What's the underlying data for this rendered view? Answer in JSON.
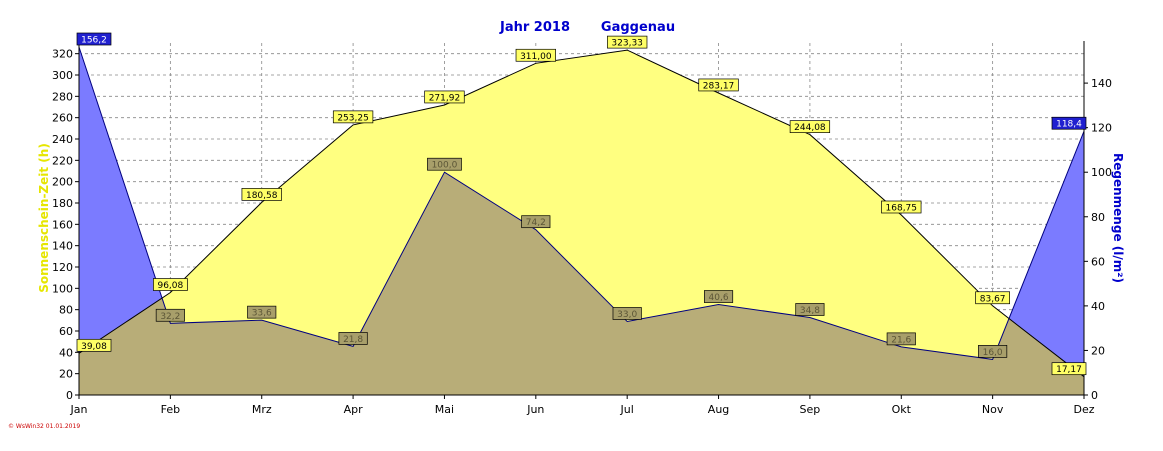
{
  "chart_data": {
    "type": "area",
    "title_year": "Jahr  2018",
    "title_location": "Gaggenau",
    "left_axis_label": "Sonnenschein-Zeit  (h)",
    "right_axis_label": "Regenmenge  (l/m²)",
    "footer": "© WsWin32  01.01.2019",
    "categories": [
      "Jan",
      "Feb",
      "Mrz",
      "Apr",
      "Mai",
      "Jun",
      "Jul",
      "Aug",
      "Sep",
      "Okt",
      "Nov",
      "Dez"
    ],
    "y_left": {
      "min": 0,
      "max": 330,
      "ticks": [
        0,
        20,
        40,
        60,
        80,
        100,
        120,
        140,
        160,
        180,
        200,
        220,
        240,
        260,
        280,
        300,
        320
      ]
    },
    "y_right": {
      "min": 0,
      "max": 158,
      "ticks": [
        0,
        20,
        40,
        60,
        80,
        100,
        120,
        140
      ]
    },
    "grid": true,
    "series": [
      {
        "name": "Sonnenschein-Zeit",
        "axis": "left",
        "values": [
          39.08,
          96.08,
          180.58,
          253.25,
          271.92,
          311.0,
          323.33,
          283.17,
          244.08,
          168.75,
          83.67,
          17.17
        ],
        "labels": [
          "39,08",
          "96,08",
          "180,58",
          "253,25",
          "271,92",
          "311,00",
          "323,33",
          "283,17",
          "244,08",
          "168,75",
          "83,67",
          "17,17"
        ],
        "fill": "#ffff80",
        "stroke": "#000000",
        "label_fill": "#ffff66"
      },
      {
        "name": "Regenmenge",
        "axis": "right",
        "values": [
          156.2,
          32.2,
          33.6,
          21.8,
          100.0,
          74.2,
          33.0,
          40.6,
          34.8,
          21.6,
          16.0,
          118.4
        ],
        "labels": [
          "156,2",
          "32,2",
          "33,6",
          "21,8",
          "100,0",
          "74,2",
          "33,0",
          "40,6",
          "34,8",
          "21,6",
          "16,0",
          "118,4"
        ],
        "fill": "#7b7bff",
        "stroke": "#000080",
        "label_fill": "#2020d0"
      }
    ],
    "colors": {
      "title": "#0000cc",
      "left_axis_label": "#e6e600",
      "right_axis_label": "#0000cc",
      "grid": "#888888",
      "overlap": "#b8ad78",
      "footer": "#cc0000"
    }
  }
}
